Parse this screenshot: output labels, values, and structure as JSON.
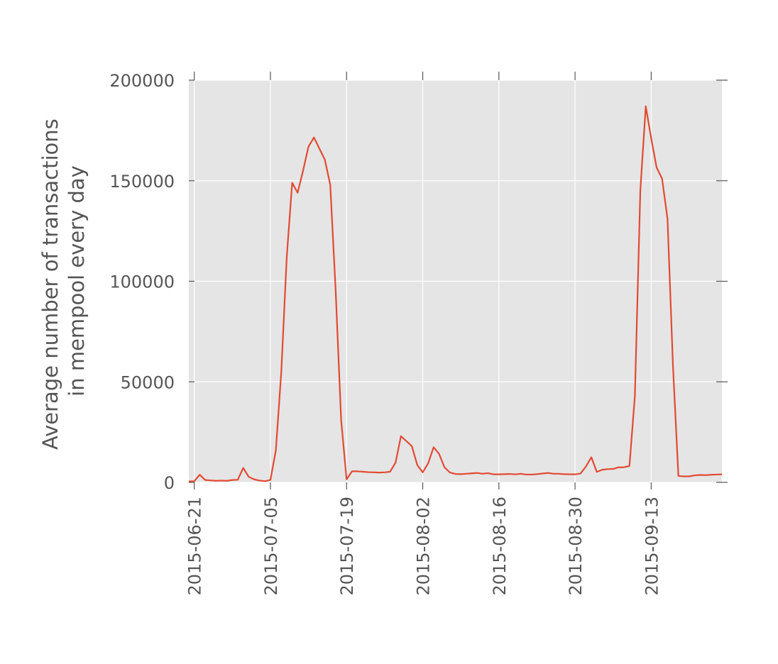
{
  "chart_data": {
    "type": "line",
    "title": "",
    "xlabel": "",
    "ylabel": "Average number of transactions in mempool every day",
    "ylabel_lines": [
      "Average number of transactions",
      "in mempool every day"
    ],
    "x_start": "2015-06-20",
    "x_end": "2015-09-26",
    "ylim": [
      0,
      200000
    ],
    "yticks": [
      0,
      50000,
      100000,
      150000,
      200000
    ],
    "ytick_labels": [
      "0",
      "50000",
      "100000",
      "150000",
      "200000"
    ],
    "xticks": [
      "2015-06-21",
      "2015-07-05",
      "2015-07-19",
      "2015-08-02",
      "2015-08-16",
      "2015-08-30",
      "2015-09-13"
    ],
    "grid": true,
    "style": "ggplot",
    "colors": {
      "line": "#E24A33",
      "plot_bg": "#E5E5E5",
      "grid": "#FFFFFF",
      "text": "#555555"
    },
    "series": [
      {
        "x": [
          "2015-06-20",
          "2015-06-21",
          "2015-06-22",
          "2015-06-23",
          "2015-06-24",
          "2015-06-25",
          "2015-06-26",
          "2015-06-27",
          "2015-06-28",
          "2015-06-29",
          "2015-06-30",
          "2015-07-01",
          "2015-07-02",
          "2015-07-03",
          "2015-07-04",
          "2015-07-05",
          "2015-07-06",
          "2015-07-07",
          "2015-07-08",
          "2015-07-09",
          "2015-07-10",
          "2015-07-11",
          "2015-07-12",
          "2015-07-13",
          "2015-07-14",
          "2015-07-15",
          "2015-07-16",
          "2015-07-17",
          "2015-07-18",
          "2015-07-19",
          "2015-07-20",
          "2015-07-21",
          "2015-07-22",
          "2015-07-23",
          "2015-07-24",
          "2015-07-25",
          "2015-07-26",
          "2015-07-27",
          "2015-07-28",
          "2015-07-29",
          "2015-07-30",
          "2015-07-31",
          "2015-08-01",
          "2015-08-02",
          "2015-08-03",
          "2015-08-04",
          "2015-08-05",
          "2015-08-06",
          "2015-08-07",
          "2015-08-08",
          "2015-08-09",
          "2015-08-10",
          "2015-08-11",
          "2015-08-12",
          "2015-08-13",
          "2015-08-14",
          "2015-08-15",
          "2015-08-16",
          "2015-08-17",
          "2015-08-18",
          "2015-08-19",
          "2015-08-20",
          "2015-08-21",
          "2015-08-22",
          "2015-08-23",
          "2015-08-24",
          "2015-08-25",
          "2015-08-26",
          "2015-08-27",
          "2015-08-28",
          "2015-08-29",
          "2015-08-30",
          "2015-08-31",
          "2015-09-01",
          "2015-09-02",
          "2015-09-03",
          "2015-09-04",
          "2015-09-05",
          "2015-09-06",
          "2015-09-07",
          "2015-09-08",
          "2015-09-09",
          "2015-09-10",
          "2015-09-11",
          "2015-09-12",
          "2015-09-13",
          "2015-09-14",
          "2015-09-15",
          "2015-09-16",
          "2015-09-17",
          "2015-09-18",
          "2015-09-19",
          "2015-09-20",
          "2015-09-21",
          "2015-09-22",
          "2015-09-23",
          "2015-09-24",
          "2015-09-25",
          "2015-09-26"
        ],
        "values": [
          500,
          600,
          3800,
          1200,
          1000,
          800,
          900,
          800,
          1200,
          1300,
          7200,
          2800,
          1500,
          900,
          600,
          1200,
          16000,
          55000,
          112000,
          149000,
          144000,
          155000,
          167000,
          171500,
          166000,
          160500,
          148000,
          95000,
          31000,
          1500,
          5500,
          5500,
          5300,
          5100,
          5000,
          4900,
          5000,
          5300,
          9800,
          23000,
          20500,
          18000,
          8600,
          5000,
          9500,
          17500,
          14200,
          7500,
          4900,
          4200,
          4100,
          4300,
          4500,
          4700,
          4300,
          4600,
          4000,
          4000,
          4100,
          4200,
          4000,
          4300,
          3900,
          3900,
          4100,
          4400,
          4700,
          4300,
          4300,
          4100,
          4000,
          4000,
          4400,
          7900,
          12500,
          5200,
          6300,
          6600,
          6700,
          7500,
          7500,
          8200,
          43000,
          145000,
          187000,
          171000,
          156500,
          151000,
          131000,
          58000,
          3200,
          3000,
          3000,
          3500,
          3700,
          3600,
          3800,
          3900,
          4000
        ]
      }
    ]
  }
}
